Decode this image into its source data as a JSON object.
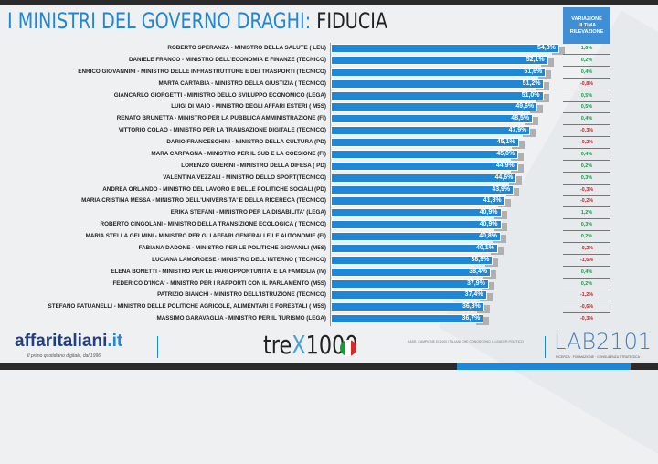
{
  "header": {
    "title_part1": "I MINISTRI DEL GOVERNO DRAGHI:",
    "title_part2": "FIDUCIA",
    "variation_header": "VARIAZIONE ULTIMA RILEVAZIONE"
  },
  "colors": {
    "bar": "#1e88d6",
    "positive": "#1a9a4a",
    "negative": "#d62020"
  },
  "chart_data": {
    "type": "bar",
    "orientation": "horizontal",
    "title": "I MINISTRI DEL GOVERNO DRAGHI: FIDUCIA",
    "unit": "%",
    "categories": [
      "ROBERTO SPERANZA - MINISTRO DELLA SALUTE ( LEU)",
      "DANIELE FRANCO - MINISTRO DELL'ECONOMIA E FINANZE (TECNICO)",
      "ENRICO GIOVANNINI - MINISTRO DELLE INFRASTRUTTURE E DEI TRASPORTI (TECNICO)",
      "MARTA CARTABIA - MINISTRO DELLA GIUSTIZIA ( TECNICO)",
      "GIANCARLO GIORGETTI - MINISTRO DELLO SVILUPPO ECONOMICO (LEGA)",
      "LUIGI DI MAIO - MINISTRO DEGLI AFFARI ESTERI ( M5S)",
      "RENATO BRUNETTA - MINISTRO PER LA PUBBLICA AMMINISTRAZIONE (FI)",
      "VITTORIO COLAO - MINISTRO PER LA TRANSAZIONE DIGITALE (TECNICO)",
      "DARIO FRANCESCHINI - MINISTRO DELLA CULTURA (PD)",
      "MARA CARFAGNA - MINISTRO PER IL SUD E LA COESIONE (FI)",
      "LORENZO GUERINI - MINISTRO DELLA DIFESA ( PD)",
      "VALENTINA VEZZALI - MINISTRO DELLO SPORT(TECNICO)",
      "ANDREA ORLANDO - MINISTRO DEL LAVORO E DELLE POLITICHE SOCIALI (PD)",
      "MARIA CRISTINA MESSA - MINISTRO DELL'UNIVERSITA' E DELLA RICERECA (TECNICO)",
      "ERIKA STEFANI - MINISTRO PER LA DISABILITA' (LEGA)",
      "ROBERTO CINGOLANI - MINISTRO DELLA TRANSIZIONE ECOLOGICA ( TECNICO)",
      "MARIA STELLA GELMINI - MINISTRO PER GLI AFFARI GENERALI E LE AUTONOMIE (FI)",
      "FABIANA DADONE - MINISTRO PER LE POLITICHE GIOVANILI (M5S)",
      "LUCIANA LAMORGESE - MINISTRO DELL'INTERNO ( TECNICO)",
      "ELENA BONETTI - MINISTRO PER LE PARI OPPORTUNITA' E LA FAMIGLIA (IV)",
      "FEDERICO D'INCA' - MINISTRO PER I RAPPORTI CON IL PARLAMENTO (M5S)",
      "PATRIZIO BIANCHI - MINISTRO DELL'ISTRUZIONE (TECNICO)",
      "STEFANO PATUANELLI - MINISTRO DELLE POLITICHE AGRICOLE, ALIMENTARI E FORESTALI ( M5S)",
      "MASSIMO GARAVAGLIA - MINISTRO PER IL TURISMO (LEGA)"
    ],
    "values": [
      54.8,
      52.1,
      51.6,
      51.2,
      51.0,
      49.6,
      48.5,
      47.9,
      45.1,
      45.0,
      44.9,
      44.6,
      43.9,
      41.8,
      40.9,
      40.9,
      40.8,
      40.1,
      38.9,
      38.4,
      37.9,
      37.4,
      36.8,
      36.7
    ],
    "value_labels": [
      "54,8%",
      "52,1%",
      "51,6%",
      "51,2%",
      "51,0%",
      "49,6%",
      "48,5%",
      "47,9%",
      "45,1%",
      "45,0%",
      "44,9%",
      "44,6%",
      "43,9%",
      "41,8%",
      "40,9%",
      "40,9%",
      "40,8%",
      "40,1%",
      "38,9%",
      "38,4%",
      "37,9%",
      "37,4%",
      "36,8%",
      "36,7%"
    ],
    "variation": [
      1.6,
      0.2,
      0.4,
      -0.8,
      0.5,
      0.5,
      0.4,
      -0.3,
      -0.2,
      0.4,
      0.2,
      0.3,
      -0.3,
      -0.2,
      1.2,
      0.3,
      0.2,
      -0.2,
      -1.6,
      0.4,
      0.2,
      -1.2,
      -0.6,
      -0.3
    ],
    "variation_labels": [
      "1,6%",
      "0,2%",
      "0,4%",
      "-0,8%",
      "0,5%",
      "0,5%",
      "0,4%",
      "-0,3%",
      "-0,2%",
      "0,4%",
      "0,2%",
      "0,3%",
      "-0,3%",
      "-0,2%",
      "1,2%",
      "0,3%",
      "0,2%",
      "-0,2%",
      "-1,6%",
      "0,4%",
      "0,2%",
      "-1,2%",
      "-0,6%",
      "-0,3%"
    ]
  },
  "footer": {
    "affaritaliani": "affaritaliani",
    "affaritaliani_tld": ".it",
    "affaritaliani_tagline": "Il primo quotidiano digitale, dal 1996",
    "trex": "tre",
    "trex_x": "X",
    "trex_num": "1000",
    "note": "BASE: CAMPIONE DI 1000 ITALIANI CHE CONOSCONO IL LEADER POLITICO",
    "lab": "LAB2101",
    "lab_tagline": "RICERCA · FORMAZIONE · CONSULENZA STRATEGICA"
  }
}
